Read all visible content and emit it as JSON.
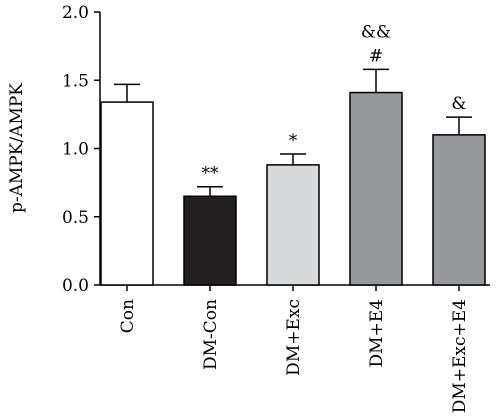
{
  "chart_data": {
    "type": "bar",
    "title": "",
    "xlabel": "",
    "ylabel": "p-AMPK/AMPK",
    "ylim": [
      0,
      2.0
    ],
    "yticks": [
      "0.0",
      "0.5",
      "1.0",
      "1.5",
      "2.0"
    ],
    "grid": false,
    "legend": "none",
    "categories": [
      "Con",
      "DM-Con",
      "DM+Exc",
      "DM+E4",
      "DM+Exc+E4"
    ],
    "values": [
      1.34,
      0.65,
      0.88,
      1.41,
      1.1
    ],
    "errors": [
      0.13,
      0.07,
      0.08,
      0.17,
      0.13
    ],
    "colors": [
      "#ffffff",
      "#231f20",
      "#d8d9db",
      "#97989c",
      "#97989c"
    ],
    "annotations": [
      [],
      [
        "**"
      ],
      [
        "*"
      ],
      [
        "#",
        "&&"
      ],
      [
        "&"
      ]
    ]
  }
}
